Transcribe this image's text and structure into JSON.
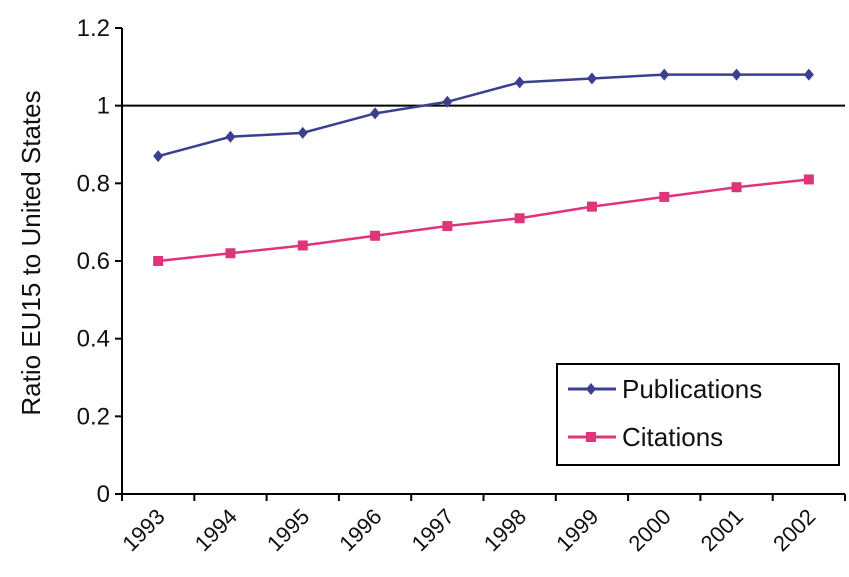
{
  "chart_data": {
    "type": "line",
    "title": "",
    "xlabel": "",
    "ylabel": "Ratio EU15 to United States",
    "categories": [
      "1993",
      "1994",
      "1995",
      "1996",
      "1997",
      "1998",
      "1999",
      "2000",
      "2001",
      "2002"
    ],
    "ylim": [
      0,
      1.2
    ],
    "yticks": [
      0,
      0.2,
      0.4,
      0.6,
      0.8,
      1,
      1.2
    ],
    "ytick_labels": [
      "0",
      "0.2",
      "0.4",
      "0.6",
      "0.8",
      "1",
      "1.2"
    ],
    "reference_line": 1,
    "grid": false,
    "legend_position": "bottom-right",
    "series": [
      {
        "name": "Publications",
        "color": "#3b3f8f",
        "marker": "diamond",
        "values": [
          0.87,
          0.92,
          0.93,
          0.98,
          1.01,
          1.06,
          1.07,
          1.08,
          1.08,
          1.08
        ]
      },
      {
        "name": "Citations",
        "color": "#e0347a",
        "marker": "square",
        "values": [
          0.6,
          0.62,
          0.64,
          0.665,
          0.69,
          0.71,
          0.74,
          0.765,
          0.79,
          0.81
        ]
      }
    ]
  }
}
